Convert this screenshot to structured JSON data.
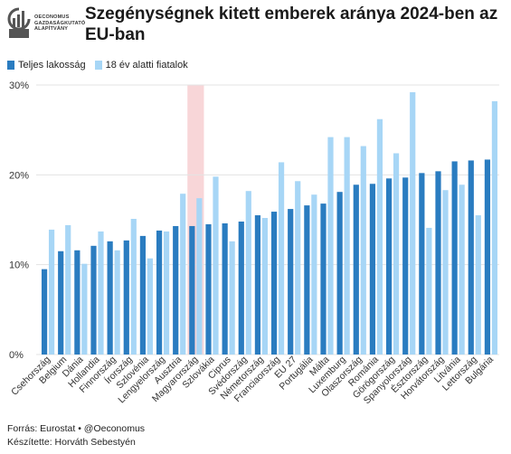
{
  "logo": {
    "lines": [
      "OECONOMUS",
      "GAZDASÁGKUTATÓ",
      "ALAPÍTVÁNY"
    ]
  },
  "header": {
    "title": "Szegénységnek kitett emberek aránya 2024-ben az EU-ban"
  },
  "colors": {
    "total": "#2a7cc0",
    "youth": "#a7d6f6",
    "highlight": "#f8d6d8",
    "grid": "#e3e3e3"
  },
  "chart_data": {
    "type": "bar",
    "title": "Szegénységnek kitett emberek aránya 2024-ben az EU-ban",
    "xlabel": "",
    "ylabel": "",
    "ylim": [
      0,
      30
    ],
    "yticks": [
      0,
      10,
      20,
      30
    ],
    "ytick_labels": [
      "0%",
      "10%",
      "20%",
      "30%"
    ],
    "grid": true,
    "legend_position": "top-left",
    "highlight_category": "Magyarország",
    "categories": [
      "Csehország",
      "Belgium",
      "Dánia",
      "Hollandia",
      "Finnország",
      "Írország",
      "Szlovénia",
      "Lengyelország",
      "Ausztria",
      "Magyarország",
      "Szlovákia",
      "Ciprus",
      "Svédország",
      "Németország",
      "Franciaország",
      "EU 27",
      "Portugália",
      "Málta",
      "Luxemburg",
      "Olaszország",
      "Románia",
      "Görögország",
      "Spanyolország",
      "Észtország",
      "Horvátország",
      "Litvánia",
      "Lettország",
      "Bulgária"
    ],
    "series": [
      {
        "name": "Teljes lakosság",
        "values": [
          9.5,
          11.5,
          11.6,
          12.1,
          12.6,
          12.7,
          13.2,
          13.8,
          14.3,
          14.3,
          14.5,
          14.6,
          14.8,
          15.5,
          15.9,
          16.2,
          16.6,
          16.8,
          18.1,
          18.9,
          19.0,
          19.6,
          19.7,
          20.2,
          20.4,
          21.5,
          21.6,
          21.7
        ]
      },
      {
        "name": "18 év alatti fiatalok",
        "values": [
          13.9,
          14.4,
          10.1,
          13.7,
          11.6,
          15.1,
          10.7,
          13.7,
          17.9,
          17.4,
          19.8,
          12.6,
          18.2,
          15.2,
          21.4,
          19.3,
          17.8,
          24.2,
          24.2,
          23.2,
          26.2,
          22.4,
          29.2,
          14.1,
          18.3,
          18.9,
          15.5,
          28.2
        ]
      }
    ]
  },
  "footer": {
    "source": "Forrás: Eurostat • @Oeconomus",
    "author": "Készítette: Horváth Sebestyén"
  }
}
